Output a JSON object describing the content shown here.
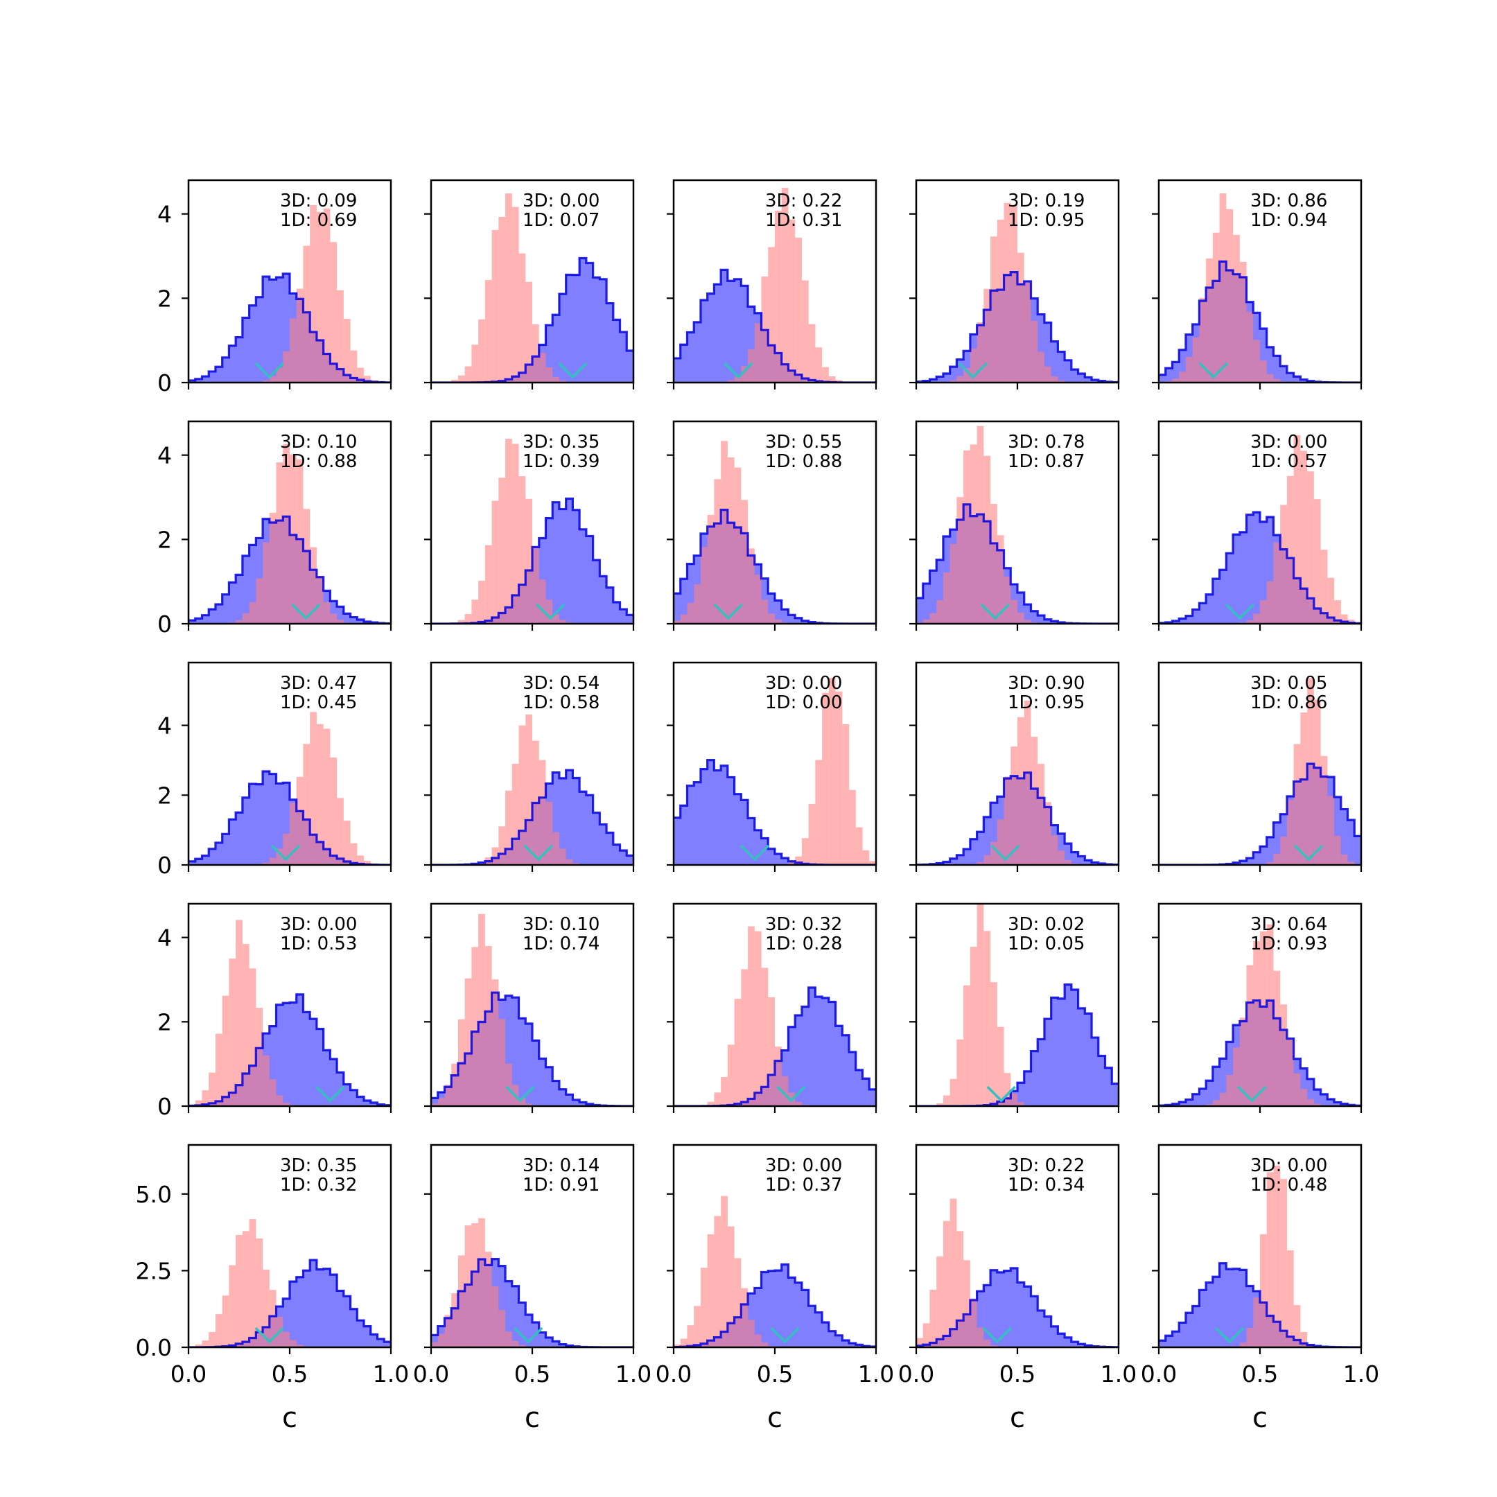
{
  "chart_data": {
    "type": "histogram-grid",
    "rows": 5,
    "cols": 5,
    "xlabel": "c",
    "xlim": [
      0,
      1
    ],
    "x_ticks": [
      "0.0",
      "0.5",
      "1.0"
    ],
    "row_ylim": [
      [
        0,
        4.8
      ],
      [
        0,
        4.8
      ],
      [
        0,
        5.8
      ],
      [
        0,
        4.8
      ],
      [
        0,
        6.6
      ]
    ],
    "row_y_ticks": [
      {
        "values": [
          0,
          2,
          4
        ],
        "labels": [
          "0",
          "2",
          "4"
        ]
      },
      {
        "values": [
          0,
          2,
          4
        ],
        "labels": [
          "0",
          "2",
          "4"
        ]
      },
      {
        "values": [
          0,
          2,
          4
        ],
        "labels": [
          "0",
          "2",
          "4"
        ]
      },
      {
        "values": [
          0,
          2,
          4
        ],
        "labels": [
          "0",
          "2",
          "4"
        ]
      },
      {
        "values": [
          0,
          2.5,
          5
        ],
        "labels": [
          "0.0",
          "2.5",
          "5.0"
        ]
      }
    ],
    "colors": {
      "blue_fill": "#7f7fff",
      "blue_edge": "#0000e0",
      "red_fill": "#ff8080",
      "marker": "#35c0c0",
      "frame": "#000000"
    },
    "panels": [
      {
        "label_3d": "3D: 0.09",
        "label_1d": "1D: 0.69",
        "blue": {
          "mean": 0.44,
          "sd": 0.15,
          "peak": 2.55
        },
        "red": {
          "mean": 0.65,
          "sd": 0.09,
          "peak": 4.3
        },
        "marker": 0.4
      },
      {
        "label_3d": "3D: 0.00",
        "label_1d": "1D: 0.07",
        "blue": {
          "mean": 0.76,
          "sd": 0.14,
          "peak": 2.85
        },
        "red": {
          "mean": 0.38,
          "sd": 0.09,
          "peak": 4.4
        },
        "marker": 0.7
      },
      {
        "label_3d": "3D: 0.22",
        "label_1d": "1D: 0.31",
        "blue": {
          "mean": 0.27,
          "sd": 0.15,
          "peak": 2.55
        },
        "red": {
          "mean": 0.55,
          "sd": 0.09,
          "peak": 4.4
        },
        "marker": 0.32
      },
      {
        "label_3d": "3D: 0.19",
        "label_1d": "1D: 0.95",
        "blue": {
          "mean": 0.48,
          "sd": 0.15,
          "peak": 2.55
        },
        "red": {
          "mean": 0.45,
          "sd": 0.09,
          "peak": 4.3
        },
        "marker": 0.28
      },
      {
        "label_3d": "3D: 0.86",
        "label_1d": "1D: 0.94",
        "blue": {
          "mean": 0.34,
          "sd": 0.14,
          "peak": 2.75
        },
        "red": {
          "mean": 0.33,
          "sd": 0.09,
          "peak": 4.3
        },
        "marker": 0.27
      },
      {
        "label_3d": "3D: 0.10",
        "label_1d": "1D: 0.88",
        "blue": {
          "mean": 0.44,
          "sd": 0.16,
          "peak": 2.5
        },
        "red": {
          "mean": 0.5,
          "sd": 0.09,
          "peak": 4.3
        },
        "marker": 0.58
      },
      {
        "label_3d": "3D: 0.35",
        "label_1d": "1D: 0.39",
        "blue": {
          "mean": 0.66,
          "sd": 0.14,
          "peak": 2.9
        },
        "red": {
          "mean": 0.4,
          "sd": 0.09,
          "peak": 4.3
        },
        "marker": 0.59
      },
      {
        "label_3d": "3D: 0.55",
        "label_1d": "1D: 0.88",
        "blue": {
          "mean": 0.25,
          "sd": 0.15,
          "peak": 2.55
        },
        "red": {
          "mean": 0.27,
          "sd": 0.09,
          "peak": 4.2
        },
        "marker": 0.27
      },
      {
        "label_3d": "3D: 0.78",
        "label_1d": "1D: 0.87",
        "blue": {
          "mean": 0.27,
          "sd": 0.15,
          "peak": 2.7
        },
        "red": {
          "mean": 0.3,
          "sd": 0.09,
          "peak": 4.6
        },
        "marker": 0.39
      },
      {
        "label_3d": "3D: 0.00",
        "label_1d": "1D: 0.57",
        "blue": {
          "mean": 0.49,
          "sd": 0.15,
          "peak": 2.6
        },
        "red": {
          "mean": 0.7,
          "sd": 0.09,
          "peak": 4.3
        },
        "marker": 0.4
      },
      {
        "label_3d": "3D: 0.47",
        "label_1d": "1D: 0.45",
        "blue": {
          "mean": 0.4,
          "sd": 0.15,
          "peak": 2.6
        },
        "red": {
          "mean": 0.64,
          "sd": 0.09,
          "peak": 4.3
        },
        "marker": 0.48
      },
      {
        "label_3d": "3D: 0.54",
        "label_1d": "1D: 0.58",
        "blue": {
          "mean": 0.66,
          "sd": 0.15,
          "peak": 2.65
        },
        "red": {
          "mean": 0.48,
          "sd": 0.08,
          "peak": 4.2
        },
        "marker": 0.53
      },
      {
        "label_3d": "3D: 0.00",
        "label_1d": "1D: 0.00",
        "blue": {
          "mean": 0.2,
          "sd": 0.15,
          "peak": 2.9
        },
        "red": {
          "mean": 0.79,
          "sd": 0.07,
          "peak": 5.5
        },
        "marker": 0.4
      },
      {
        "label_3d": "3D: 0.90",
        "label_1d": "1D: 0.95",
        "blue": {
          "mean": 0.51,
          "sd": 0.14,
          "peak": 2.6
        },
        "red": {
          "mean": 0.54,
          "sd": 0.08,
          "peak": 4.5
        },
        "marker": 0.44
      },
      {
        "label_3d": "3D: 0.05",
        "label_1d": "1D: 0.86",
        "blue": {
          "mean": 0.77,
          "sd": 0.14,
          "peak": 2.8
        },
        "red": {
          "mean": 0.75,
          "sd": 0.07,
          "peak": 5.2
        },
        "marker": 0.74
      },
      {
        "label_3d": "3D: 0.00",
        "label_1d": "1D: 0.53",
        "blue": {
          "mean": 0.52,
          "sd": 0.15,
          "peak": 2.55
        },
        "red": {
          "mean": 0.26,
          "sd": 0.08,
          "peak": 4.2
        },
        "marker": 0.7
      },
      {
        "label_3d": "3D: 0.10",
        "label_1d": "1D: 0.74",
        "blue": {
          "mean": 0.36,
          "sd": 0.15,
          "peak": 2.65
        },
        "red": {
          "mean": 0.25,
          "sd": 0.08,
          "peak": 4.3
        },
        "marker": 0.44
      },
      {
        "label_3d": "3D: 0.32",
        "label_1d": "1D: 0.28",
        "blue": {
          "mean": 0.71,
          "sd": 0.14,
          "peak": 2.7
        },
        "red": {
          "mean": 0.4,
          "sd": 0.08,
          "peak": 4.2
        },
        "marker": 0.58
      },
      {
        "label_3d": "3D: 0.02",
        "label_1d": "1D: 0.05",
        "blue": {
          "mean": 0.75,
          "sd": 0.13,
          "peak": 2.8
        },
        "red": {
          "mean": 0.32,
          "sd": 0.07,
          "peak": 4.6
        },
        "marker": 0.42
      },
      {
        "label_3d": "3D: 0.64",
        "label_1d": "1D: 0.93",
        "blue": {
          "mean": 0.5,
          "sd": 0.15,
          "peak": 2.5
        },
        "red": {
          "mean": 0.52,
          "sd": 0.09,
          "peak": 4.3
        },
        "marker": 0.46
      },
      {
        "label_3d": "3D: 0.35",
        "label_1d": "1D: 0.32",
        "blue": {
          "mean": 0.63,
          "sd": 0.15,
          "peak": 2.7
        },
        "red": {
          "mean": 0.3,
          "sd": 0.09,
          "peak": 4.1
        },
        "marker": 0.4
      },
      {
        "label_3d": "3D: 0.14",
        "label_1d": "1D: 0.91",
        "blue": {
          "mean": 0.29,
          "sd": 0.14,
          "peak": 2.85
        },
        "red": {
          "mean": 0.22,
          "sd": 0.08,
          "peak": 4.3
        },
        "marker": 0.48
      },
      {
        "label_3d": "3D: 0.00",
        "label_1d": "1D: 0.37",
        "blue": {
          "mean": 0.52,
          "sd": 0.15,
          "peak": 2.6
        },
        "red": {
          "mean": 0.24,
          "sd": 0.08,
          "peak": 4.7
        },
        "marker": 0.55
      },
      {
        "label_3d": "3D: 0.22",
        "label_1d": "1D: 0.34",
        "blue": {
          "mean": 0.44,
          "sd": 0.15,
          "peak": 2.55
        },
        "red": {
          "mean": 0.18,
          "sd": 0.07,
          "peak": 4.6
        },
        "marker": 0.4
      },
      {
        "label_3d": "3D: 0.00",
        "label_1d": "1D: 0.48",
        "blue": {
          "mean": 0.35,
          "sd": 0.15,
          "peak": 2.65
        },
        "red": {
          "mean": 0.58,
          "sd": 0.06,
          "peak": 6.3
        },
        "marker": 0.35
      }
    ]
  }
}
